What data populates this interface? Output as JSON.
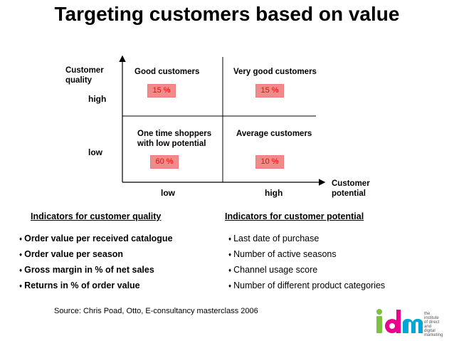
{
  "title": "Targeting customers based on value",
  "axes": {
    "y_label": "Customer\nquality",
    "y_high": "high",
    "y_low": "low",
    "x_label": "Customer\npotential",
    "x_low": "low",
    "x_high": "high"
  },
  "quadrants": {
    "top_left": {
      "label": "Good customers",
      "pct": "15 %"
    },
    "top_right": {
      "label": "Very good customers",
      "pct": "15 %"
    },
    "bottom_left": {
      "label": "One time shoppers\nwith low potential",
      "pct": "60 %"
    },
    "bottom_right": {
      "label": "Average customers",
      "pct": "10 %"
    }
  },
  "quality_indicators": {
    "heading": "Indicators for customer quality",
    "items": [
      "Order value per received catalogue",
      "Order value per season",
      "Gross margin in % of net sales",
      "Returns in % of order value"
    ]
  },
  "potential_indicators": {
    "heading": "Indicators for customer potential",
    "items": [
      "Last date of purchase",
      "Number of active seasons",
      "Channel usage score",
      "Number of different product categories"
    ]
  },
  "bullet_glyph": "♦",
  "source": "Source: Chris Poad, Otto, E-consultancy masterclass 2006",
  "logo": {
    "letters": "idm",
    "tagline": "the institute\nof direct\nand digital\nmarketing",
    "colors": {
      "i": "#7cc242",
      "d": "#ec008c",
      "m": "#00a6d6"
    }
  },
  "colors": {
    "pct_text": "#ff0000",
    "pct_bg": "#f08b8b"
  }
}
